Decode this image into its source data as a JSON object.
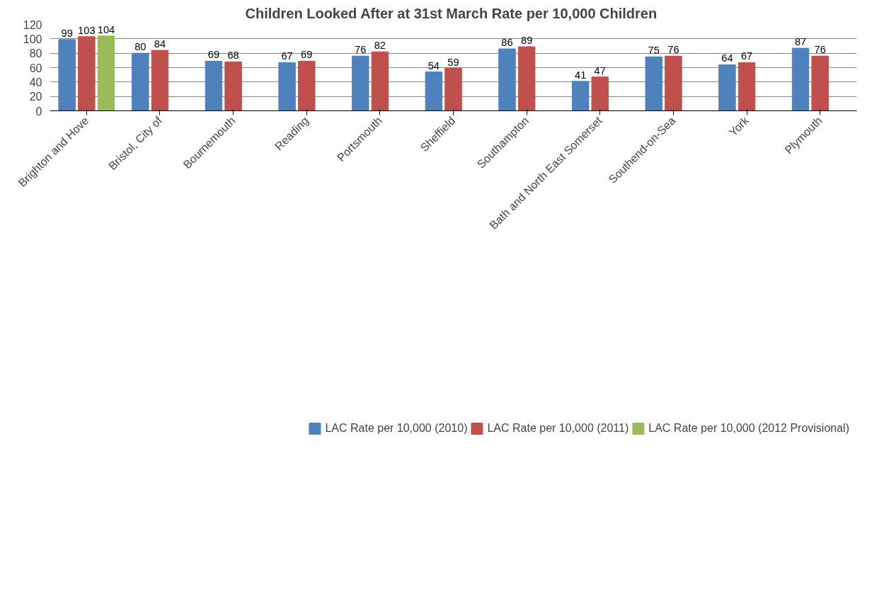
{
  "chart_data": {
    "type": "bar",
    "title": "Children Looked After at 31st March Rate per 10,000  Children",
    "categories": [
      "Brighton and Hove",
      "Bristol, City of",
      "Bournemouth",
      "Reading",
      "Portsmouth",
      "Sheffield",
      "Southampton",
      "Bath and North East Somerset",
      "Southend-on-Sea",
      "York",
      "Plymouth"
    ],
    "series": [
      {
        "name": "LAC Rate per 10,000 (2010)",
        "color": "#4f81bd",
        "values": [
          99,
          80,
          69,
          67,
          76,
          54,
          86,
          41,
          75,
          64,
          87
        ]
      },
      {
        "name": "LAC Rate per 10,000 (2011)",
        "color": "#c0504d",
        "values": [
          103,
          84,
          68,
          69,
          82,
          59,
          89,
          47,
          76,
          67,
          76
        ]
      },
      {
        "name": "LAC Rate per 10,000 (2012 Provisional)",
        "color": "#9bbb59",
        "values": [
          104,
          null,
          null,
          null,
          null,
          null,
          null,
          null,
          null,
          null,
          null
        ]
      }
    ],
    "ylim": [
      0,
      120
    ],
    "yticks": [
      0,
      20,
      40,
      60,
      80,
      100,
      120
    ],
    "grid": "y",
    "legend": "bottom",
    "data_labels": true
  }
}
